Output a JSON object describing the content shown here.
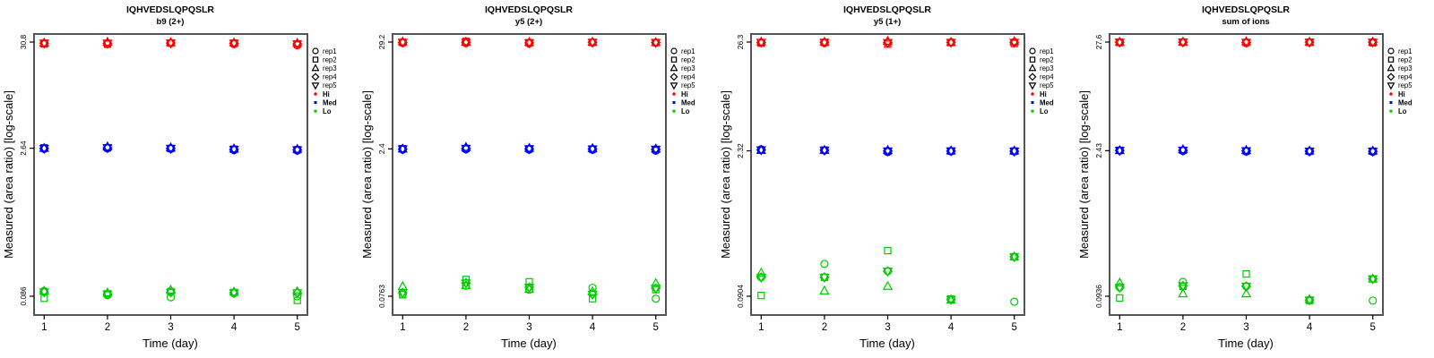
{
  "figure": {
    "ylabel": "Measured (area ratio) [log-scale]",
    "xlabel": "Time (day)",
    "x_ticks": [
      "1",
      "2",
      "3",
      "4",
      "5"
    ],
    "axis_color": "#000000",
    "box_color": "#555555",
    "legend": {
      "reps": [
        {
          "label": "rep1",
          "marker": "circle"
        },
        {
          "label": "rep2",
          "marker": "square"
        },
        {
          "label": "rep3",
          "marker": "triangle-up"
        },
        {
          "label": "rep4",
          "marker": "diamond"
        },
        {
          "label": "rep5",
          "marker": "triangle-down"
        }
      ],
      "levels": [
        {
          "label": "Hi",
          "color": "#FF0000"
        },
        {
          "label": "Med",
          "color": "#0000FF"
        },
        {
          "label": "Lo",
          "color": "#00CC00"
        }
      ]
    }
  },
  "chart_data": [
    {
      "type": "scatter",
      "title": "IQHVEDSLQPQSLR",
      "subtitle": "b9 (2+)",
      "xlabel": "Time (day)",
      "ylabel": "Measured (area ratio) [log-scale]",
      "x": [
        1,
        2,
        3,
        4,
        5
      ],
      "yscale": "log",
      "yticks": [
        0.086,
        2.64,
        30.8
      ],
      "ytick_labels": [
        "0.086",
        "2.64",
        "30.8"
      ],
      "series": [
        {
          "name": "Hi",
          "days": [
            [
              30.0,
              29.5,
              30.2,
              30.0,
              30.0
            ],
            [
              29.4,
              29.3,
              30.7,
              30.0,
              30.0
            ],
            [
              30.0,
              30.1,
              30.5,
              30.1,
              30.1
            ],
            [
              29.4,
              30.0,
              30.3,
              29.9,
              29.9
            ],
            [
              28.6,
              29.5,
              30.0,
              29.5,
              29.5
            ]
          ]
        },
        {
          "name": "Med",
          "days": [
            [
              2.6,
              2.66,
              2.64,
              2.63,
              2.63
            ],
            [
              2.63,
              2.67,
              2.73,
              2.66,
              2.66
            ],
            [
              2.6,
              2.63,
              2.67,
              2.63,
              2.63
            ],
            [
              2.53,
              2.58,
              2.61,
              2.57,
              2.57
            ],
            [
              2.5,
              2.55,
              2.58,
              2.54,
              2.54
            ]
          ]
        },
        {
          "name": "Lo",
          "days": [
            [
              0.097,
              0.082,
              0.097,
              0.095,
              0.095
            ],
            [
              0.088,
              0.091,
              0.093,
              0.09,
              0.09
            ],
            [
              0.084,
              0.096,
              0.099,
              0.094,
              0.094
            ],
            [
              0.092,
              0.094,
              0.095,
              0.093,
              0.093
            ],
            [
              0.086,
              0.078,
              0.096,
              0.093,
              0.093
            ]
          ]
        }
      ]
    },
    {
      "type": "scatter",
      "title": "IQHVEDSLQPQSLR",
      "subtitle": "y5 (2+)",
      "xlabel": "Time (day)",
      "ylabel": "Measured (area ratio) [log-scale]",
      "x": [
        1,
        2,
        3,
        4,
        5
      ],
      "yscale": "log",
      "yticks": [
        0.0763,
        2.4,
        29.2
      ],
      "ytick_labels": [
        "0.0763",
        "2.4",
        "29.2"
      ],
      "series": [
        {
          "name": "Hi",
          "days": [
            [
              28.6,
              29.0,
              29.4,
              29.0,
              29.0
            ],
            [
              28.5,
              29.6,
              29.2,
              29.0,
              29.0
            ],
            [
              28.2,
              28.8,
              29.0,
              28.7,
              28.7
            ],
            [
              28.9,
              29.0,
              29.2,
              29.0,
              29.0
            ],
            [
              28.7,
              28.9,
              29.0,
              28.9,
              28.9
            ]
          ]
        },
        {
          "name": "Med",
          "days": [
            [
              2.36,
              2.41,
              2.4,
              2.39,
              2.39
            ],
            [
              2.37,
              2.42,
              2.49,
              2.42,
              2.42
            ],
            [
              2.36,
              2.4,
              2.44,
              2.4,
              2.4
            ],
            [
              2.35,
              2.39,
              2.42,
              2.39,
              2.39
            ],
            [
              2.3,
              2.37,
              2.4,
              2.37,
              2.37
            ]
          ]
        },
        {
          "name": "Lo",
          "days": [
            [
              0.08,
              0.079,
              0.096,
              0.083,
              0.083
            ],
            [
              0.098,
              0.113,
              0.098,
              0.104,
              0.104
            ],
            [
              0.089,
              0.107,
              0.09,
              0.094,
              0.094
            ],
            [
              0.093,
              0.072,
              0.085,
              0.08,
              0.08
            ],
            [
              0.072,
              0.089,
              0.103,
              0.092,
              0.092
            ]
          ]
        }
      ]
    },
    {
      "type": "scatter",
      "title": "IQHVEDSLQPQSLR",
      "subtitle": "y5 (1+)",
      "xlabel": "Time (day)",
      "ylabel": "Measured (area ratio) [log-scale]",
      "x": [
        1,
        2,
        3,
        4,
        5
      ],
      "yscale": "log",
      "yticks": [
        0.0904,
        2.32,
        26.3
      ],
      "ytick_labels": [
        "0.0904",
        "2.32",
        "26.3"
      ],
      "series": [
        {
          "name": "Hi",
          "days": [
            [
              26.0,
              25.7,
              26.4,
              26.1,
              26.1
            ],
            [
              25.8,
              26.1,
              26.3,
              26.1,
              26.1
            ],
            [
              25.9,
              25.1,
              26.8,
              26.0,
              26.0
            ],
            [
              26.2,
              26.0,
              26.2,
              26.1,
              26.1
            ],
            [
              26.3,
              25.5,
              26.6,
              26.1,
              26.1
            ]
          ]
        },
        {
          "name": "Med",
          "days": [
            [
              2.4,
              2.36,
              2.35,
              2.37,
              2.37
            ],
            [
              2.34,
              2.36,
              2.35,
              2.35,
              2.35
            ],
            [
              2.26,
              2.3,
              2.35,
              2.31,
              2.31
            ],
            [
              2.3,
              2.31,
              2.32,
              2.31,
              2.31
            ],
            [
              2.29,
              2.31,
              2.32,
              2.3,
              2.3
            ]
          ]
        },
        {
          "name": "Lo",
          "days": [
            [
              0.138,
              0.092,
              0.152,
              0.138,
              0.138
            ],
            [
              0.186,
              0.138,
              0.102,
              0.138,
              0.138
            ],
            [
              0.158,
              0.25,
              0.113,
              0.158,
              0.158
            ],
            [
              0.084,
              0.085,
              0.083,
              0.084,
              0.084
            ],
            [
              0.08,
              0.218,
              0.218,
              0.218,
              0.218
            ]
          ]
        }
      ]
    },
    {
      "type": "scatter",
      "title": "IQHVEDSLQPQSLR",
      "subtitle": "sum of ions",
      "xlabel": "Time (day)",
      "ylabel": "Measured (area ratio) [log-scale]",
      "x": [
        1,
        2,
        3,
        4,
        5
      ],
      "yscale": "log",
      "yticks": [
        0.0936,
        2.43,
        27.6
      ],
      "ytick_labels": [
        "0.0936",
        "2.43",
        "27.6"
      ],
      "series": [
        {
          "name": "Hi",
          "days": [
            [
              27.5,
              27.3,
              27.6,
              27.5,
              27.5
            ],
            [
              27.4,
              27.6,
              27.7,
              27.5,
              27.5
            ],
            [
              27.0,
              27.3,
              27.9,
              27.4,
              27.4
            ],
            [
              27.5,
              27.4,
              27.6,
              27.5,
              27.5
            ],
            [
              27.4,
              27.2,
              27.7,
              27.5,
              27.5
            ]
          ]
        },
        {
          "name": "Med",
          "days": [
            [
              2.43,
              2.45,
              2.44,
              2.44,
              2.44
            ],
            [
              2.42,
              2.45,
              2.49,
              2.45,
              2.45
            ],
            [
              2.38,
              2.42,
              2.45,
              2.42,
              2.42
            ],
            [
              2.39,
              2.4,
              2.42,
              2.4,
              2.4
            ],
            [
              2.37,
              2.4,
              2.42,
              2.39,
              2.39
            ]
          ]
        },
        {
          "name": "Lo",
          "days": [
            [
              0.114,
              0.09,
              0.126,
              0.114,
              0.114
            ],
            [
              0.129,
              0.117,
              0.099,
              0.118,
              0.118
            ],
            [
              0.117,
              0.154,
              0.099,
              0.117,
              0.117
            ],
            [
              0.086,
              0.085,
              0.087,
              0.086,
              0.086
            ],
            [
              0.085,
              0.138,
              0.138,
              0.138,
              0.138
            ]
          ]
        }
      ]
    }
  ]
}
